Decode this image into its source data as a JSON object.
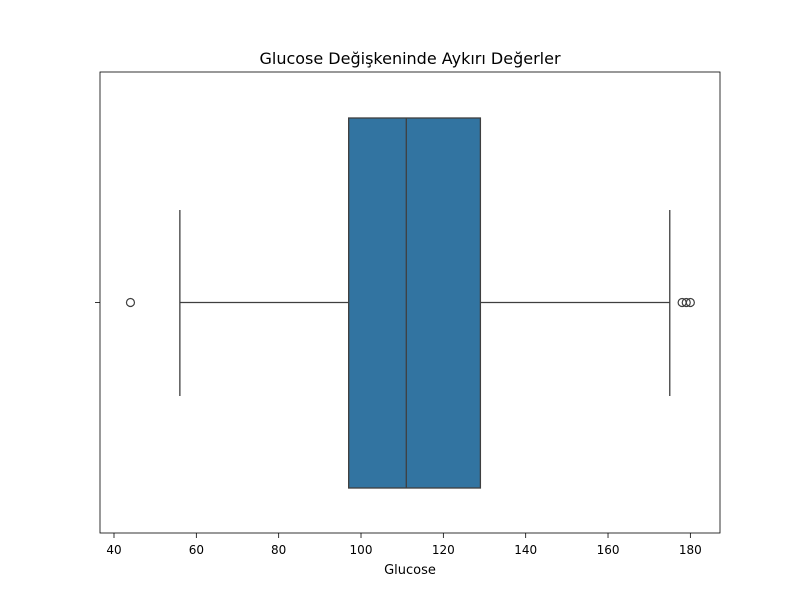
{
  "chart_data": {
    "type": "box",
    "title": "Glucose Değişkeninde Aykırı Değerler",
    "xlabel": "Glucose",
    "ylabel": "",
    "orientation": "horizontal",
    "xlim": [
      36.6,
      187.2
    ],
    "xticks": [
      40,
      60,
      80,
      100,
      120,
      140,
      160,
      180
    ],
    "grid": false,
    "box": {
      "whisker_low": 56,
      "q1": 97,
      "median": 111,
      "q3": 129,
      "whisker_high": 175,
      "outliers": [
        44,
        178,
        179,
        180
      ],
      "color": "#3274a1"
    }
  }
}
